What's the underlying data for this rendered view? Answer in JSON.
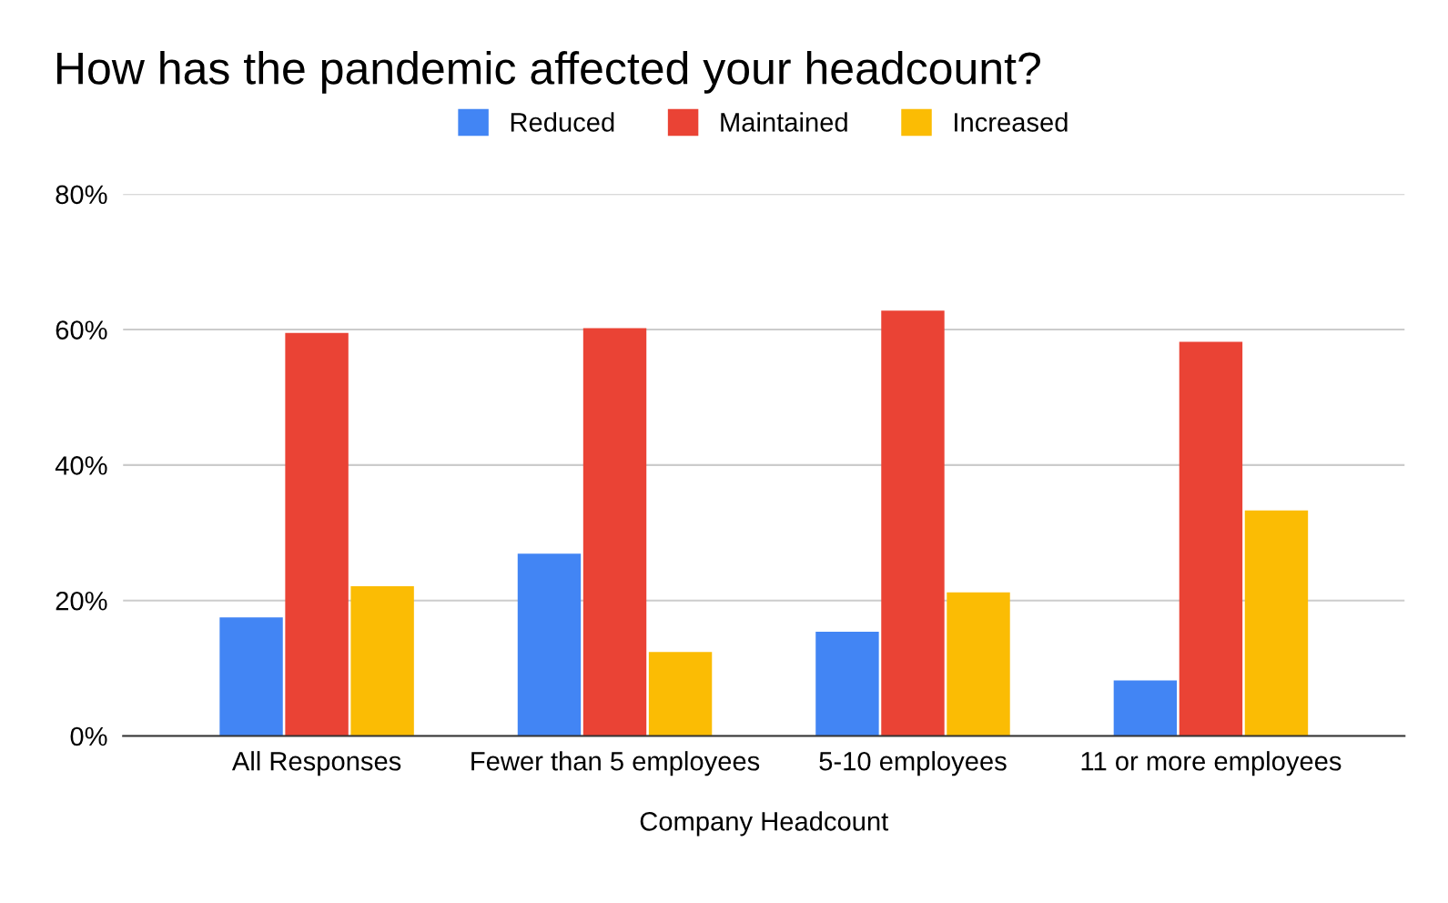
{
  "chart_data": {
    "type": "bar",
    "title": "How has the pandemic affected your headcount?",
    "xlabel": "Company Headcount",
    "categories": [
      "All Responses",
      "Fewer than 5 employees",
      "5-10 employees",
      "11 or more employees"
    ],
    "series": [
      {
        "name": "Reduced",
        "color": "#4285f4",
        "values": [
          17.5,
          26.9,
          15.4,
          8.2
        ]
      },
      {
        "name": "Maintained",
        "color": "#ea4335",
        "values": [
          59.5,
          60.2,
          62.8,
          58.2
        ]
      },
      {
        "name": "Increased",
        "color": "#fbbc04",
        "values": [
          22.1,
          12.4,
          21.2,
          33.3
        ]
      }
    ],
    "ylim": [
      0,
      80
    ],
    "yticks": [
      {
        "value": 0,
        "label": "0%"
      },
      {
        "value": 20,
        "label": "20%"
      },
      {
        "value": 40,
        "label": "40%"
      },
      {
        "value": 60,
        "label": "60%"
      },
      {
        "value": 80,
        "label": "80%"
      }
    ],
    "grid": "y",
    "legend": "top"
  }
}
